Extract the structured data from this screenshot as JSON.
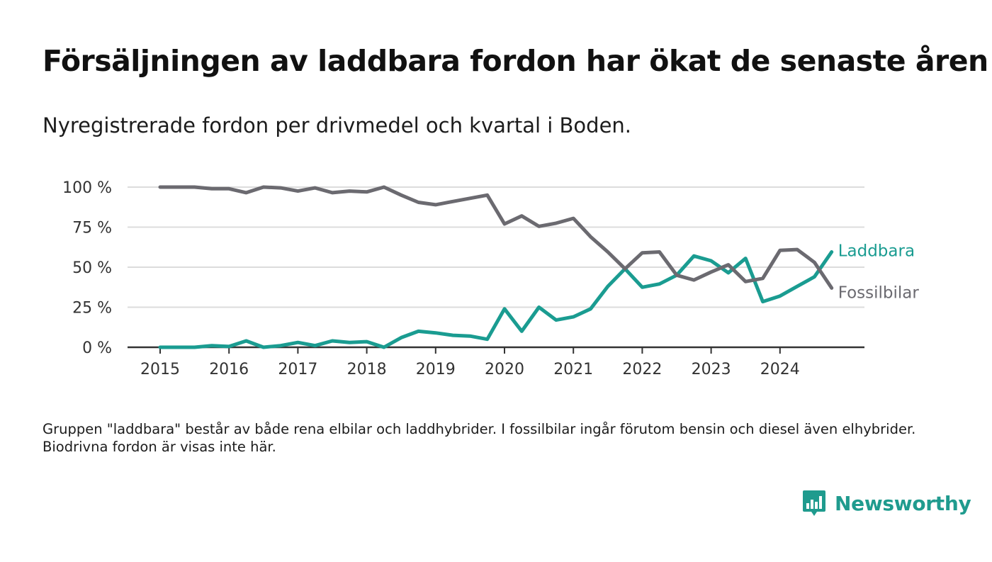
{
  "header": {
    "title": "Försäljningen av laddbara fordon har ökat de senaste åren",
    "subtitle": "Nyregistrerade fordon per drivmedel och kvartal i Boden."
  },
  "footer": {
    "note": "Gruppen \"laddbara\" består av både rena elbilar och laddhybrider. I fossilbilar ingår förutom bensin och diesel även elhybrider. Biodrivna fordon är visas inte här.",
    "brand": "Newsworthy",
    "brand_icon": "bar-chart-speech-bubble-icon",
    "brand_color": "#1f9b8e"
  },
  "chart_data": {
    "type": "line",
    "x_ticks": [
      "2015",
      "2016",
      "2017",
      "2018",
      "2019",
      "2020",
      "2021",
      "2022",
      "2023",
      "2024"
    ],
    "y_ticks": [
      {
        "value": 0,
        "label": "0 %"
      },
      {
        "value": 25,
        "label": "25 %"
      },
      {
        "value": 50,
        "label": "50 %"
      },
      {
        "value": 75,
        "label": "75 %"
      },
      {
        "value": 100,
        "label": "100 %"
      }
    ],
    "ylim": [
      0,
      100
    ],
    "grid": true,
    "x": [
      "2015-Q1",
      "2015-Q2",
      "2015-Q3",
      "2015-Q4",
      "2016-Q1",
      "2016-Q2",
      "2016-Q3",
      "2016-Q4",
      "2017-Q1",
      "2017-Q2",
      "2017-Q3",
      "2017-Q4",
      "2018-Q1",
      "2018-Q2",
      "2018-Q3",
      "2018-Q4",
      "2019-Q1",
      "2019-Q2",
      "2019-Q3",
      "2019-Q4",
      "2020-Q1",
      "2020-Q2",
      "2020-Q3",
      "2020-Q4",
      "2021-Q1",
      "2021-Q2",
      "2021-Q3",
      "2021-Q4",
      "2022-Q1",
      "2022-Q2",
      "2022-Q3",
      "2022-Q4",
      "2023-Q1",
      "2023-Q2",
      "2023-Q3",
      "2023-Q4",
      "2024-Q1",
      "2024-Q2",
      "2024-Q3",
      "2024-Q4"
    ],
    "series": [
      {
        "name": "Laddbara",
        "color": "#1a9c91",
        "values": [
          0,
          0,
          0,
          1,
          0.5,
          4,
          0,
          1,
          3,
          1,
          4,
          3,
          3.5,
          0,
          6,
          10,
          9,
          7.5,
          7,
          5,
          24,
          10,
          25,
          17,
          19,
          24,
          38,
          49,
          37.5,
          39.5,
          45,
          57,
          54,
          46.5,
          55.5,
          28.5,
          32,
          38,
          44,
          59.5
        ]
      },
      {
        "name": "Fossilbilar",
        "color": "#6b6a70",
        "values": [
          100,
          100,
          100,
          99,
          99,
          96.5,
          100,
          99.5,
          97.5,
          99.5,
          96.5,
          97.5,
          97,
          100,
          95,
          90.5,
          89,
          91,
          93,
          95,
          77,
          82,
          75.5,
          77.5,
          80.5,
          69,
          59.5,
          49,
          59,
          59.5,
          45,
          42,
          47,
          51.5,
          41,
          43,
          60.5,
          61,
          53,
          37
        ]
      }
    ]
  }
}
